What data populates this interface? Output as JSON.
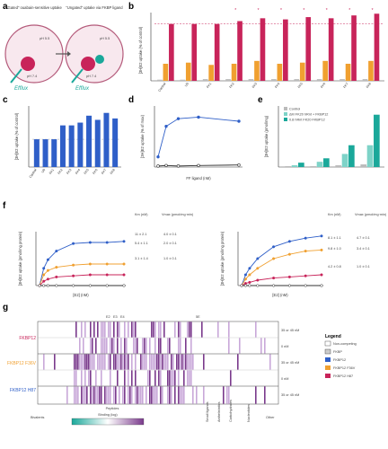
{
  "panels": {
    "a": {
      "letter": "a",
      "left_title": "“Gated” ouabain-sensitive uptake",
      "right_title": "“Ungated” uptake via FKBP ligand",
      "ph_top": "pH 5.5",
      "ph_bottom": "pH 7.4",
      "left_label": "Efflux",
      "right_label": "Efflux"
    },
    "b": {
      "letter": "b",
      "ylabel": "[3H]E2 uptake (% of control)",
      "star": "*"
    },
    "c": {
      "letter": "c",
      "ylabel": "[3H]E2 uptake (% of control)"
    },
    "d": {
      "letter": "d",
      "ylabel": "[3H]E2 uptake (% of max)",
      "xlabel": "FF ligand (nM)"
    },
    "e": {
      "letter": "e",
      "ylabel": "[3H]E2 uptake (pmol/mg)",
      "legend": [
        "Control",
        "ΔM FK20 hRnt + FKBP12",
        "0.8 hRnt FK20 FKBP12"
      ]
    },
    "f": {
      "letter": "f",
      "left_ylabel": "[3H]E2 uptake (pmol/mg protein)",
      "right_ylabel": "[3H]E2 uptake (pmol/mg protein)",
      "xlabel": "[E2] (nM)",
      "left_hdr_km": "Km (nM)",
      "left_hdr_vmax": "Vmax (pmol/mg·min)",
      "right_hdr_km": "Km (nM)",
      "right_hdr_vmax": "Vmax (pmol/mg·min)",
      "left_vals": [
        [
          "11 ± 2.1",
          "4.0 ± 0.1"
        ],
        [
          "5.4 ± 1.1",
          "2.0 ± 0.1"
        ],
        [
          "3.1 ± 1.4",
          "1.0 ± 0.1"
        ]
      ],
      "right_vals": [
        [
          "8.1 ± 1.1",
          "4.7 ± 0.1"
        ],
        [
          "9.8 ± 1.0",
          "3.4 ± 0.1"
        ],
        [
          "4.2 ± 0.8",
          "1.0 ± 0.1"
        ]
      ]
    },
    "g": {
      "letter": "g",
      "rows": [
        "FKBP12",
        "FKBP12 F36V",
        "FKBP12 H87"
      ],
      "conds": [
        "35 or 45 nM",
        "0 nM",
        "35 or 45 nM",
        "0 nM",
        "35 or 45 nM"
      ],
      "bottom_labels": [
        "Bivalents",
        "Peptides",
        "Small ligands",
        "Anthelmintics",
        "Carbohydrates",
        "Nucleotides",
        "Other"
      ],
      "cbar_label": "Binding (log)",
      "legend_title": "Legend",
      "legend": [
        "Non-competing",
        "FKBP",
        "FKBP12",
        "FKBP12 F36V",
        "FKBP12 H87"
      ],
      "top_ticks": [
        "E2",
        "E3",
        "E4",
        "5E"
      ]
    }
  },
  "chart_data": [
    {
      "type": "bar",
      "id": "b",
      "categories": [
        "Control",
        "U0",
        "FK1",
        "FK2",
        "FK3",
        "FK4",
        "FK5",
        "FK6",
        "FK7",
        "FK8"
      ],
      "series": [
        {
          "values": [
            2,
            2,
            3,
            3,
            3,
            3,
            3,
            3,
            3,
            3
          ]
        },
        {
          "values": [
            30,
            32,
            28,
            30,
            35,
            30,
            32,
            35,
            30,
            35
          ]
        },
        {
          "values": [
            100,
            100,
            100,
            105,
            110,
            108,
            112,
            110,
            115,
            118
          ]
        }
      ],
      "ylim": [
        0,
        120
      ]
    },
    {
      "type": "bar",
      "id": "c",
      "categories": [
        "Control",
        "U0",
        "FK1",
        "FK2",
        "FK3",
        "FK4",
        "FK5",
        "FK6",
        "FK7",
        "FK8"
      ],
      "values": [
        100,
        100,
        100,
        150,
        150,
        160,
        185,
        170,
        195,
        175
      ],
      "ylim": [
        0,
        220
      ]
    },
    {
      "type": "line",
      "id": "d",
      "x": [
        0,
        20,
        50,
        100,
        200
      ],
      "series": [
        {
          "values": [
            20,
            80,
            95,
            98,
            90
          ]
        },
        {
          "values": [
            2,
            3,
            2,
            3,
            4
          ]
        }
      ],
      "xlim": [
        0,
        200
      ],
      "ylim": [
        0,
        120
      ]
    },
    {
      "type": "bar",
      "id": "e",
      "categories": [
        "A",
        "B",
        "C",
        "D"
      ],
      "series": [
        {
          "values": [
            1,
            1,
            2,
            3
          ]
        },
        {
          "values": [
            2,
            6,
            15,
            25
          ]
        },
        {
          "values": [
            5,
            10,
            25,
            60
          ]
        }
      ],
      "ylim": [
        0,
        70
      ]
    },
    {
      "type": "line",
      "id": "f-left",
      "x": [
        0,
        2.5,
        5,
        10,
        20,
        30,
        40,
        50
      ],
      "series": [
        {
          "values": [
            0,
            1.6,
            2.4,
            3.2,
            3.9,
            4.0,
            4.0,
            4.1
          ]
        },
        {
          "values": [
            0,
            1.0,
            1.4,
            1.7,
            1.9,
            2.0,
            2.0,
            2.0
          ]
        },
        {
          "values": [
            0,
            0.4,
            0.6,
            0.8,
            0.9,
            1.0,
            1.0,
            1.0
          ]
        },
        {
          "values": [
            0,
            0,
            0,
            0,
            0,
            0,
            0,
            0
          ]
        }
      ],
      "xlim": [
        0,
        50
      ],
      "ylim": [
        0,
        5
      ]
    },
    {
      "type": "line",
      "id": "f-right",
      "x": [
        0,
        2.5,
        5,
        10,
        20,
        30,
        40,
        50
      ],
      "series": [
        {
          "values": [
            0,
            1.0,
            1.6,
            2.5,
            3.6,
            4.1,
            4.4,
            4.6
          ]
        },
        {
          "values": [
            0,
            0.6,
            1.0,
            1.6,
            2.5,
            2.9,
            3.2,
            3.3
          ]
        },
        {
          "values": [
            0,
            0.2,
            0.3,
            0.5,
            0.7,
            0.8,
            0.9,
            1.0
          ]
        },
        {
          "values": [
            0,
            0,
            0,
            0,
            0,
            0,
            0,
            0
          ]
        }
      ],
      "xlim": [
        0,
        50
      ],
      "ylim": [
        0,
        5
      ]
    }
  ],
  "colors": {
    "pink": "#c8245a",
    "orange": "#f0a030",
    "blue": "#2f5fc8",
    "teal": "#1aa89a",
    "lightteal": "#7ed3c8",
    "gray": "#bbbbbb",
    "purple": "#7a3a8c",
    "lavender": "#c9a8d9",
    "navy": "#1e2e7a"
  }
}
